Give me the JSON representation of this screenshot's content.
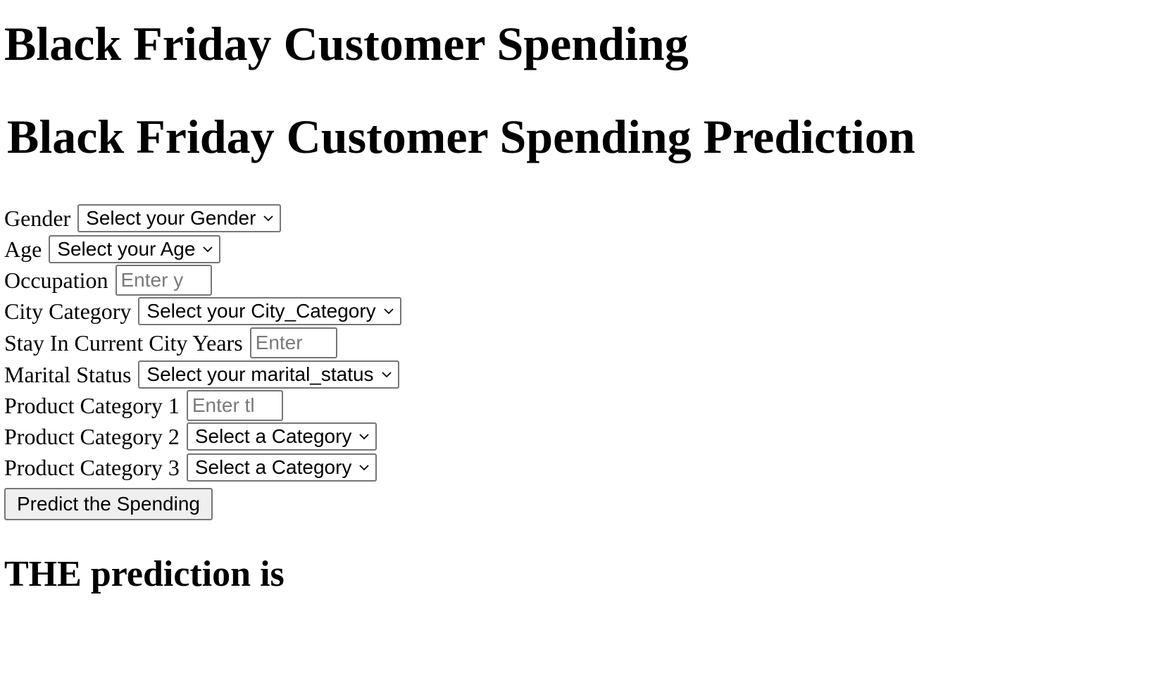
{
  "page": {
    "title": "Black Friday Customer Spending",
    "subtitle": "Black Friday Customer Spending Prediction"
  },
  "form": {
    "gender": {
      "label": "Gender",
      "value": "Select your Gender"
    },
    "age": {
      "label": "Age",
      "value": "Select your Age"
    },
    "occupation": {
      "label": "Occupation",
      "placeholder": "Enter y"
    },
    "city_category": {
      "label": "City Category",
      "value": "Select your City_Category"
    },
    "stay_years": {
      "label": "Stay In Current City Years",
      "placeholder": "Enter"
    },
    "marital_status": {
      "label": "Marital Status",
      "value": "Select your marital_status"
    },
    "product_category_1": {
      "label": "Product Category 1",
      "placeholder": "Enter tl"
    },
    "product_category_2": {
      "label": "Product Category 2",
      "value": "Select a Category"
    },
    "product_category_3": {
      "label": "Product Category 3",
      "value": "Select a Category"
    },
    "submit_label": "Predict the Spending"
  },
  "result": {
    "text": "THE prediction is"
  },
  "icons": {
    "dropdown": "chevron-down-icon"
  },
  "colors": {
    "control_border": "#767676",
    "button_bg": "#efefef",
    "placeholder": "#7a7a7a"
  }
}
